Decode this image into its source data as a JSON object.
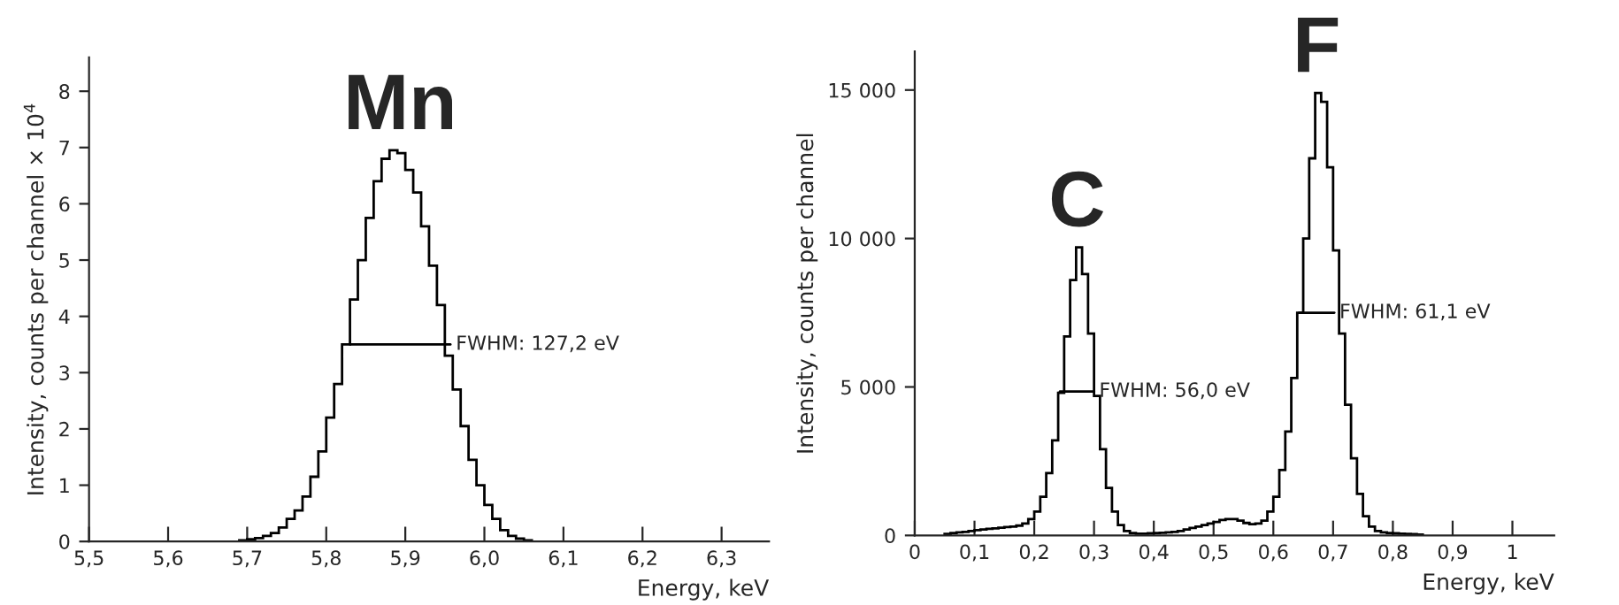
{
  "chart_data": [
    {
      "type": "histogram",
      "xlabel": "Energy, keV",
      "ylabel": "Intensity, counts per channel × 10$^{4}$",
      "color": "#000000",
      "bins": [
        5.69,
        5.7,
        5.71,
        5.72,
        5.73,
        5.74,
        5.75,
        5.76,
        5.77,
        5.78,
        5.79,
        5.8,
        5.81,
        5.82,
        5.83,
        5.84,
        5.85,
        5.86,
        5.87,
        5.88,
        5.89,
        5.9,
        5.91,
        5.92,
        5.93,
        5.94,
        5.95,
        5.96,
        5.97,
        5.98,
        5.99,
        6.0,
        6.01,
        6.02,
        6.03,
        6.04,
        6.05,
        6.06
      ],
      "values": [
        0.02,
        0.04,
        0.06,
        0.1,
        0.15,
        0.25,
        0.4,
        0.55,
        0.8,
        1.15,
        1.6,
        2.2,
        2.8,
        3.5,
        4.3,
        5.0,
        5.75,
        6.4,
        6.8,
        6.95,
        6.9,
        6.6,
        6.2,
        5.6,
        4.9,
        4.2,
        3.3,
        2.7,
        2.05,
        1.45,
        1.0,
        0.65,
        0.4,
        0.2,
        0.1,
        0.05,
        0.02
      ],
      "series": [
        {
          "type": "line",
          "name": "FWHM: 127,2 eV",
          "x": [
            5.83,
            5.957
          ],
          "values": [
            3.5,
            3.5
          ],
          "color": "#000000"
        }
      ],
      "annotations": [
        "Mn"
      ],
      "xlim": [
        5.5,
        6.36
      ],
      "ylim": [
        0,
        8.6
      ],
      "xticks": [
        {
          "value": 5.5,
          "label": "5,5"
        },
        {
          "value": 5.6,
          "label": "5,6"
        },
        {
          "value": 5.7,
          "label": "5,7"
        },
        {
          "value": 5.8,
          "label": "5,8"
        },
        {
          "value": 5.9,
          "label": "5,9"
        },
        {
          "value": 6.0,
          "label": "6,0"
        },
        {
          "value": 6.1,
          "label": "6,1"
        },
        {
          "value": 6.2,
          "label": "6,2"
        },
        {
          "value": 6.3,
          "label": "6,3"
        }
      ],
      "yticks": [
        0,
        1,
        2,
        3,
        4,
        5,
        6,
        7,
        8
      ],
      "grid": false,
      "legend": false
    },
    {
      "type": "histogram",
      "xlabel": "Energy, keV",
      "ylabel": "Intensity, counts per channel",
      "color": "#000000",
      "bins": [
        0.05,
        0.06,
        0.07,
        0.08,
        0.09,
        0.1,
        0.11,
        0.12,
        0.13,
        0.14,
        0.15,
        0.16,
        0.17,
        0.18,
        0.19,
        0.2,
        0.21,
        0.22,
        0.23,
        0.24,
        0.25,
        0.26,
        0.27,
        0.28,
        0.29,
        0.3,
        0.31,
        0.32,
        0.33,
        0.34,
        0.35,
        0.36,
        0.37,
        0.38,
        0.39,
        0.4,
        0.41,
        0.42,
        0.43,
        0.44,
        0.45,
        0.46,
        0.47,
        0.48,
        0.49,
        0.5,
        0.51,
        0.52,
        0.53,
        0.54,
        0.55,
        0.56,
        0.57,
        0.58,
        0.59,
        0.6,
        0.61,
        0.62,
        0.63,
        0.64,
        0.65,
        0.66,
        0.67,
        0.68,
        0.69,
        0.7,
        0.71,
        0.72,
        0.73,
        0.74,
        0.75,
        0.76,
        0.77,
        0.78,
        0.79,
        0.8,
        0.81,
        0.82,
        0.83,
        0.84,
        0.85
      ],
      "values": [
        50,
        80,
        100,
        120,
        150,
        180,
        200,
        220,
        240,
        260,
        280,
        300,
        330,
        400,
        550,
        800,
        1300,
        2100,
        3200,
        4800,
        6700,
        8600,
        9700,
        8800,
        6800,
        4700,
        2900,
        1600,
        800,
        350,
        150,
        80,
        60,
        60,
        70,
        80,
        90,
        100,
        120,
        150,
        200,
        250,
        300,
        350,
        400,
        450,
        520,
        550,
        550,
        500,
        420,
        380,
        400,
        500,
        800,
        1300,
        2200,
        3500,
        5300,
        7500,
        10000,
        12700,
        14900,
        14600,
        12400,
        9600,
        6800,
        4400,
        2600,
        1400,
        650,
        300,
        150,
        100,
        80,
        70,
        60,
        50,
        40,
        30
      ],
      "series": [
        {
          "type": "line",
          "name": "FWHM: 56,0 eV",
          "x": [
            0.243,
            0.3
          ],
          "values": [
            4850,
            4850
          ],
          "color": "#000000"
        },
        {
          "type": "line",
          "name": "FWHM: 61,1 eV",
          "x": [
            0.643,
            0.702
          ],
          "values": [
            7500,
            7500
          ],
          "color": "#000000"
        }
      ],
      "annotations": [
        "C",
        "F"
      ],
      "xlim": [
        0,
        1.07
      ],
      "ylim": [
        0,
        16300
      ],
      "xticks": [
        0,
        {
          "value": 0.1,
          "label": "0,1"
        },
        {
          "value": 0.2,
          "label": "0,2"
        },
        {
          "value": 0.3,
          "label": "0,3"
        },
        {
          "value": 0.4,
          "label": "0,4"
        },
        {
          "value": 0.5,
          "label": "0,5"
        },
        {
          "value": 0.6,
          "label": "0,6"
        },
        {
          "value": 0.7,
          "label": "0,7"
        },
        {
          "value": 0.8,
          "label": "0,8"
        },
        {
          "value": 0.9,
          "label": "0,9"
        },
        1
      ],
      "yticks": [
        0,
        {
          "value": 5000,
          "label": "5 000"
        },
        {
          "value": 10000,
          "label": "10 000"
        },
        {
          "value": 15000,
          "label": "15 000"
        }
      ],
      "grid": false,
      "legend": false
    }
  ]
}
